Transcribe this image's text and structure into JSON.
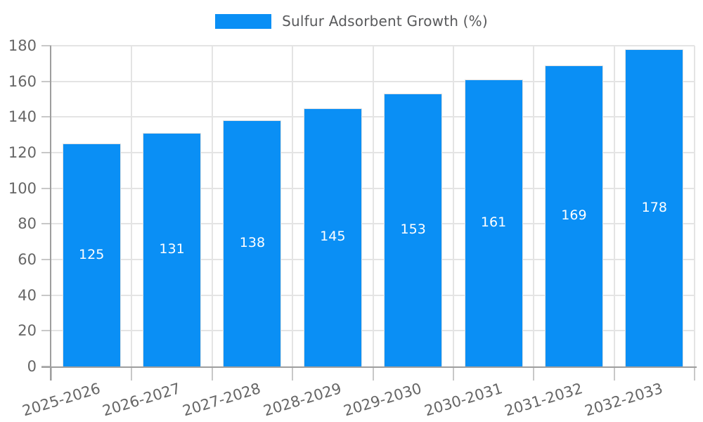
{
  "legend": {
    "label": "Sulfur Adsorbent Growth (%)"
  },
  "chart_data": {
    "type": "bar",
    "title": "Sulfur Adsorbent Growth (%)",
    "categories": [
      "2025-2026",
      "2026-2027",
      "2027-2028",
      "2028-2029",
      "2029-2030",
      "2030-2031",
      "2031-2032",
      "2032-2033"
    ],
    "values": [
      125,
      131,
      138,
      145,
      153,
      161,
      169,
      178
    ],
    "xlabel": "",
    "ylabel": "",
    "ylim": [
      0,
      180
    ],
    "ytick_step": 20,
    "grid": true,
    "legend_position": "top",
    "value_labels": "inside-middle",
    "xtick_rotation_deg": -17
  },
  "colors": {
    "bar": "#0A8FF5",
    "bar_edge": "#E2E2E2",
    "grid": "#E4E4E4",
    "axis_line": "#9E9E9E",
    "tick": "#C8C8C8",
    "axis_text": "#666666",
    "legend_text": "#58595B",
    "value_label_text": "#FFFFFF",
    "background": "#FFFFFF"
  }
}
